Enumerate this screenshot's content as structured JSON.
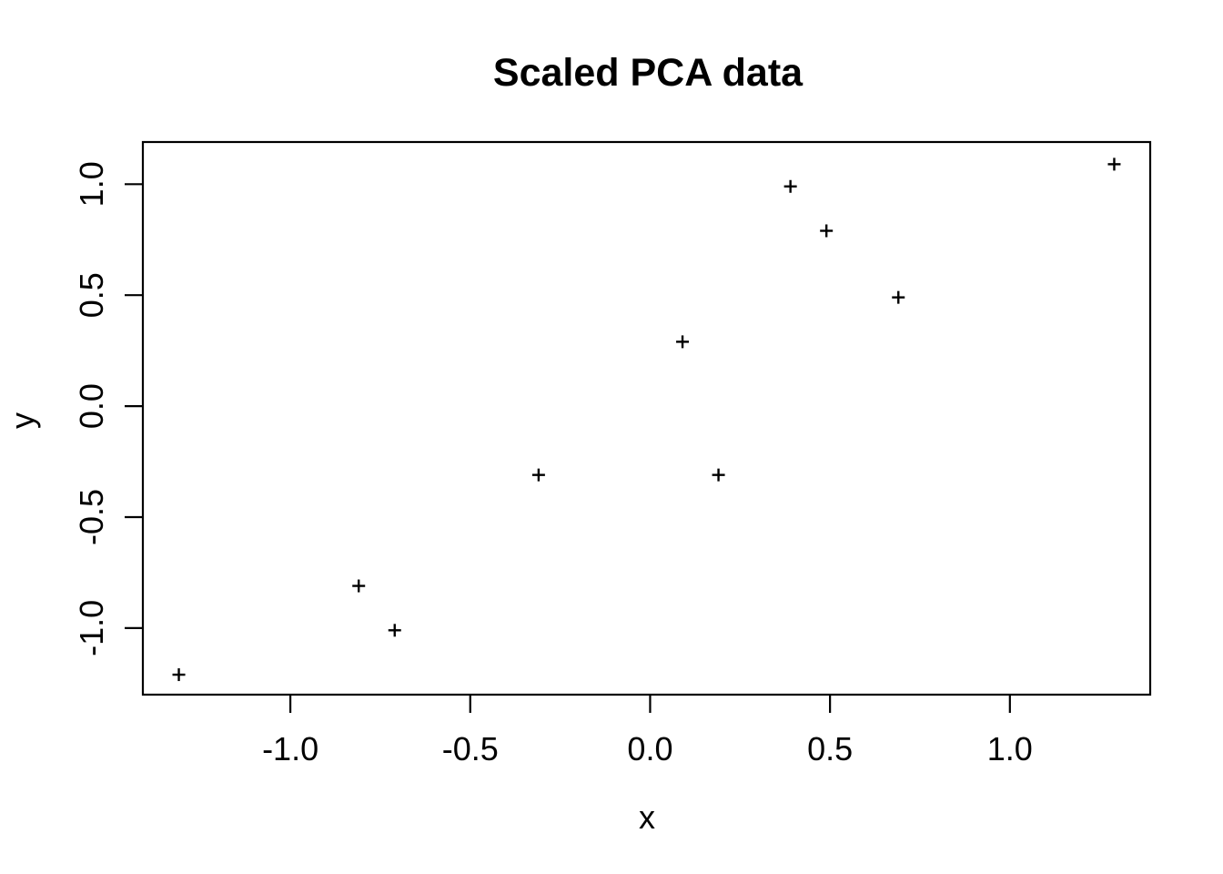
{
  "chart_data": {
    "type": "scatter",
    "title": "Scaled PCA data",
    "xlabel": "x",
    "ylabel": "y",
    "marker": "plus",
    "grid": false,
    "legend": null,
    "colors": {
      "foreground": "#000000",
      "background": "#ffffff"
    },
    "xlim": [
      -1.41,
      1.39
    ],
    "ylim": [
      -1.3,
      1.19
    ],
    "x_ticks": [
      {
        "value": -1.0,
        "label": "-1.0"
      },
      {
        "value": -0.5,
        "label": "-0.5"
      },
      {
        "value": 0.0,
        "label": "0.0"
      },
      {
        "value": 0.5,
        "label": "0.5"
      },
      {
        "value": 1.0,
        "label": "1.0"
      }
    ],
    "y_ticks": [
      {
        "value": -1.0,
        "label": "-1.0"
      },
      {
        "value": -0.5,
        "label": "-0.5"
      },
      {
        "value": 0.0,
        "label": "0.0"
      },
      {
        "value": 0.5,
        "label": "0.5"
      },
      {
        "value": 1.0,
        "label": "1.0"
      }
    ],
    "points": [
      {
        "x": -1.31,
        "y": -1.21
      },
      {
        "x": -0.81,
        "y": -0.81
      },
      {
        "x": -0.71,
        "y": -1.01
      },
      {
        "x": -0.31,
        "y": -0.31
      },
      {
        "x": 0.09,
        "y": 0.29
      },
      {
        "x": 0.19,
        "y": -0.31
      },
      {
        "x": 0.39,
        "y": 0.99
      },
      {
        "x": 0.49,
        "y": 0.79
      },
      {
        "x": 0.69,
        "y": 0.49
      },
      {
        "x": 1.29,
        "y": 1.09
      }
    ]
  }
}
